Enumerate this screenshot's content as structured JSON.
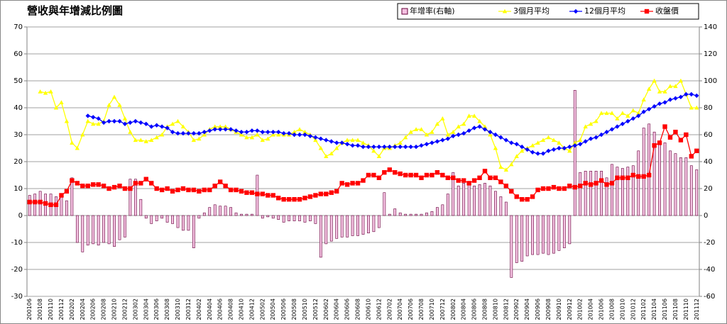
{
  "chart_data": {
    "type": "combo",
    "title": "營收與年增減比例圖",
    "categories": [
      "200106",
      null,
      "200108",
      null,
      "200110",
      null,
      "200112",
      null,
      "200202",
      null,
      "200204",
      null,
      "200206",
      null,
      "200208",
      null,
      "200210",
      null,
      "200212",
      null,
      "200302",
      null,
      "200304",
      null,
      "200306",
      null,
      "200308",
      null,
      "200310",
      null,
      "200312",
      null,
      "200402",
      null,
      "200404",
      null,
      "200406",
      null,
      "200408",
      null,
      "200410",
      null,
      "200412",
      null,
      "200502",
      null,
      "200504",
      null,
      "200506",
      null,
      "200508",
      null,
      "200510",
      null,
      "200512",
      null,
      "200602",
      null,
      "200604",
      null,
      "200606",
      null,
      "200608",
      null,
      "200610",
      null,
      "200612",
      null,
      "200702",
      null,
      "200704",
      null,
      "200706",
      null,
      "200708",
      null,
      "200710",
      null,
      "200712",
      null,
      "200802",
      null,
      "200804",
      null,
      "200806",
      null,
      "200808",
      null,
      "200810",
      null,
      "200812",
      null,
      "200902",
      null,
      "200904",
      null,
      "200906",
      null,
      "200908",
      null,
      "200910",
      null,
      "200912",
      null,
      "201002",
      null,
      "201004",
      null,
      "201006",
      null,
      "201008",
      null,
      "201010",
      null,
      "201012",
      null,
      "201102",
      null,
      "201104",
      null,
      "201106",
      null,
      "201108",
      null,
      "201110",
      null,
      "201112"
    ],
    "series": [
      {
        "name": "年增率(右軸)",
        "type": "bar",
        "axis": "y2",
        "color": "#f4c2e2",
        "stroke": "#66003a",
        "values": [
          15,
          16,
          18,
          16,
          16,
          14,
          16,
          11,
          28,
          -20,
          -27,
          -22,
          -21,
          -22,
          -20,
          -21,
          -23,
          -18,
          -16,
          27,
          27,
          12,
          -2,
          -6,
          -4,
          -2,
          -5,
          -6,
          -9,
          -11,
          -11,
          -24,
          -2,
          2,
          6,
          8,
          7,
          7,
          6,
          2,
          1,
          1,
          1,
          30,
          -2,
          -1,
          -2,
          -3,
          -5,
          -4,
          -4,
          -4,
          -5,
          -4,
          -6,
          -31,
          -21,
          -19,
          -17,
          -16,
          -16,
          -15,
          -15,
          -14,
          -13,
          -12,
          -9,
          17,
          1,
          5,
          2,
          1,
          1,
          1,
          1,
          2,
          3,
          6,
          8,
          16,
          32,
          22,
          24,
          23,
          22,
          23,
          24,
          22,
          18,
          14,
          10,
          -46,
          -35,
          -34,
          -30,
          -29,
          -29,
          -28,
          -29,
          -28,
          -26,
          -24,
          -21,
          93,
          32,
          33,
          33,
          33,
          33,
          28,
          38,
          36,
          35,
          36,
          37,
          48,
          65,
          68,
          62,
          55,
          54,
          48,
          46,
          43,
          43,
          37,
          34
        ]
      },
      {
        "name": "3個月平均",
        "type": "line",
        "marker": "triangle",
        "color": "#ffff00",
        "values": [
          null,
          null,
          46,
          45.5,
          46,
          40,
          42,
          35,
          27,
          25,
          30,
          35,
          34,
          34,
          35,
          41,
          44,
          41,
          36,
          31,
          28,
          28,
          27.5,
          28,
          29,
          30,
          33,
          34,
          35,
          33,
          31,
          28,
          28.5,
          30,
          32,
          33,
          33,
          33,
          32,
          31,
          30,
          29,
          29,
          30,
          28,
          28.5,
          30,
          30,
          30,
          30,
          31,
          32,
          31,
          30,
          28,
          25,
          22,
          23,
          25,
          27,
          28,
          28,
          28,
          27,
          26,
          24,
          22,
          25,
          25,
          26,
          27,
          29,
          31,
          32,
          32,
          30,
          31,
          34,
          36,
          30,
          31,
          33,
          34,
          37,
          37,
          35,
          33,
          30,
          25,
          18,
          17,
          19,
          22,
          24,
          25,
          26,
          27,
          28,
          29,
          28,
          27,
          25,
          24,
          27,
          28,
          33,
          34,
          35,
          38,
          38,
          38,
          36,
          38,
          37,
          39,
          38,
          43,
          47,
          50,
          46,
          46,
          48,
          48,
          50,
          45,
          40,
          40
        ]
      },
      {
        "name": "12個月平均",
        "type": "line",
        "marker": "diamond",
        "color": "#0000ff",
        "values": [
          null,
          null,
          null,
          null,
          null,
          null,
          null,
          null,
          null,
          null,
          null,
          37,
          36.5,
          36,
          34.5,
          35,
          35,
          35,
          34,
          34.5,
          35,
          34.5,
          34,
          33,
          33.5,
          33,
          32.5,
          31,
          30.5,
          30.5,
          30.5,
          30.5,
          30.5,
          31,
          31.5,
          32,
          32,
          32,
          32,
          31.5,
          31,
          31,
          31.5,
          31.5,
          31,
          31,
          31,
          31,
          30.5,
          30.5,
          30,
          30,
          30,
          29.5,
          29,
          28.5,
          28,
          27.5,
          27,
          27,
          26.5,
          26,
          26,
          25.5,
          25.5,
          25.5,
          25.5,
          25.5,
          25.5,
          25.5,
          25.5,
          25.5,
          25.5,
          25.5,
          26,
          26.5,
          27,
          27.5,
          28,
          28.5,
          29.5,
          30,
          30.5,
          31.5,
          32.5,
          33,
          32,
          31,
          30,
          29,
          28,
          27,
          26.5,
          25.5,
          24.5,
          23.5,
          23,
          23,
          24,
          24.5,
          25,
          25,
          25.5,
          26,
          26.5,
          27.5,
          28.5,
          29,
          30,
          31,
          32,
          33,
          34,
          35,
          36,
          37,
          38.5,
          39.5,
          40.5,
          41.5,
          42,
          43,
          43.5,
          44,
          45,
          45,
          44.5
        ]
      },
      {
        "name": "收盤價",
        "type": "line",
        "marker": "square",
        "color": "#ff0000",
        "values": [
          5,
          5,
          5,
          4.5,
          4,
          4,
          7.5,
          9,
          13,
          12,
          11,
          11,
          11.5,
          11.5,
          11,
          10,
          10.5,
          11,
          10,
          10,
          12,
          12,
          13.5,
          12,
          10,
          9.5,
          10,
          9,
          9.5,
          10,
          9.5,
          9.5,
          9,
          9.5,
          9.5,
          11,
          12.5,
          11,
          9.5,
          9.5,
          9,
          8.5,
          8.5,
          8,
          8,
          7.5,
          7.5,
          6.5,
          6,
          6,
          6,
          6,
          6.5,
          7,
          7.5,
          8,
          8,
          8.5,
          9,
          12,
          11.5,
          12,
          12,
          13,
          15,
          15,
          14,
          16,
          17,
          16,
          15.5,
          15,
          15,
          15,
          14,
          15,
          15,
          16,
          15,
          14,
          14,
          13,
          13,
          12,
          13,
          14,
          16.5,
          14,
          14,
          12.5,
          11,
          9,
          7,
          6,
          6,
          7,
          9.5,
          10,
          10,
          10.5,
          10,
          10,
          11,
          10.5,
          11,
          12,
          11.5,
          12,
          13,
          11.5,
          12,
          14,
          14,
          14,
          15,
          14.5,
          14.5,
          15,
          26,
          27,
          33,
          29,
          31,
          28,
          30,
          22,
          24
        ]
      }
    ],
    "ylim": [
      -30,
      70
    ],
    "yticks": [
      -30,
      -20,
      -10,
      0,
      10,
      20,
      30,
      40,
      50,
      60,
      70
    ],
    "y2lim": [
      -60,
      140
    ],
    "y2ticks": [
      -60,
      -40,
      -20,
      0,
      20,
      40,
      60,
      80,
      100,
      120,
      140
    ],
    "grid": true,
    "legend": "top-right"
  }
}
